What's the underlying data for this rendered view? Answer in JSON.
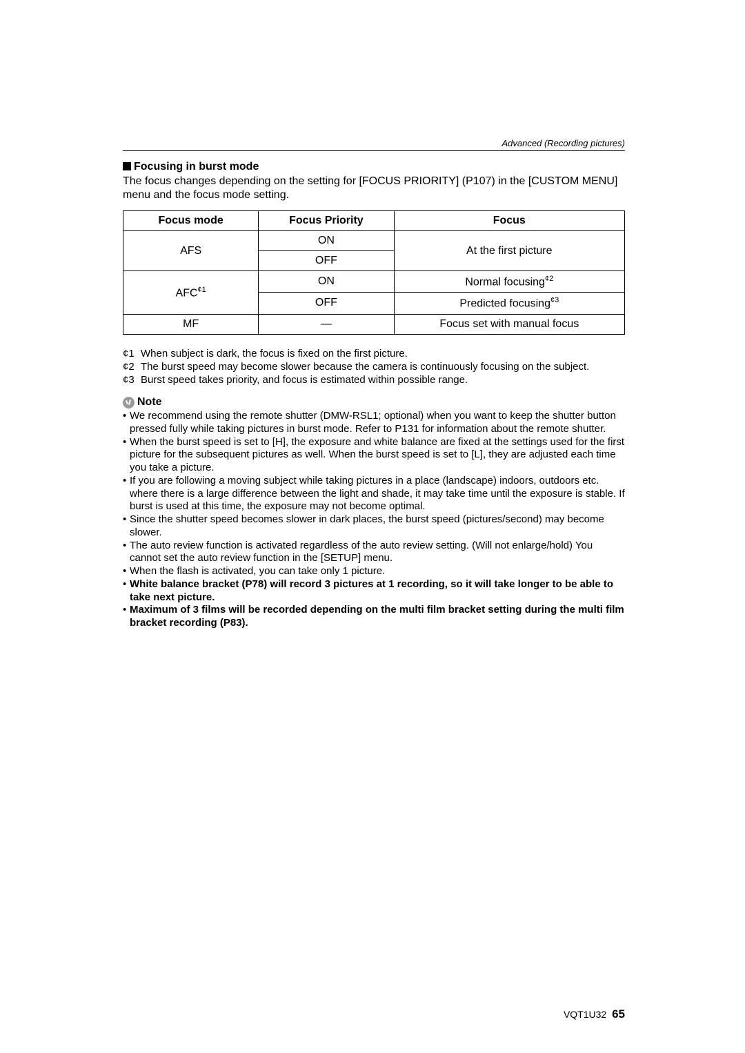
{
  "header": {
    "section": "Advanced (Recording pictures)"
  },
  "title": "Focusing in burst mode",
  "intro": "The focus changes depending on the setting for [FOCUS PRIORITY] (P107) in the [CUSTOM MENU] menu and the focus mode setting.",
  "table": {
    "headers": {
      "c1": "Focus mode",
      "c2": "Focus Priority",
      "c3": "Focus"
    },
    "rows": {
      "afs": {
        "mode": "AFS",
        "p_on": "ON",
        "p_off": "OFF",
        "focus": "At the first picture"
      },
      "afc": {
        "mode_prefix": "AFC",
        "mode_sup": "¢1",
        "p_on": "ON",
        "p_off": "OFF",
        "focus_on_prefix": "Normal focusing",
        "focus_on_sup": "¢2",
        "focus_off_prefix": "Predicted focusing",
        "focus_off_sup": "¢3"
      },
      "mf": {
        "mode": "MF",
        "priority": "—",
        "focus": "Focus set with manual focus"
      }
    },
    "col_widths": [
      "27%",
      "27%",
      "46%"
    ],
    "border_color": "#000000",
    "font_size": 16
  },
  "footnotes": {
    "f1": {
      "mark": "¢1",
      "text": "When subject is dark, the focus is fixed on the first picture."
    },
    "f2": {
      "mark": "¢2",
      "text": "The burst speed may become slower because the camera is continuously focusing on the subject."
    },
    "f3": {
      "mark": "¢3",
      "text": "Burst speed takes priority, and focus is estimated within possible range."
    }
  },
  "note": {
    "label": "Note"
  },
  "bullets": {
    "b1": "We recommend using the remote shutter (DMW-RSL1; optional) when you want to keep the shutter button pressed fully while taking pictures in burst mode. Refer to P131 for information about the remote shutter.",
    "b2": "When the burst speed is set to [H], the exposure and white balance are fixed at the settings used for the first picture for the subsequent pictures as well. When the burst speed is set to [L], they are adjusted each time you take a picture.",
    "b3": "If you are following a moving subject while taking pictures in a place (landscape) indoors, outdoors etc. where there is a large difference between the light and shade, it may take time until the exposure is stable. If burst is used at this time, the exposure may not become optimal.",
    "b4": "Since the shutter speed becomes slower in dark places, the burst speed (pictures/second) may become slower.",
    "b5": "The auto review function is activated regardless of the auto review setting. (Will not enlarge/hold) You cannot set the auto review function in the [SETUP] menu.",
    "b6": "When the flash is activated, you can take only 1 picture.",
    "b7": "White balance bracket (P78) will record 3 pictures at 1 recording, so it will take longer to be able to take next picture.",
    "b8": "Maximum of 3 films will be recorded depending on the multi film bracket setting during the multi film bracket recording (P83)."
  },
  "footer": {
    "code": "VQT1U32",
    "page": "65"
  },
  "colors": {
    "text": "#000000",
    "bg": "#ffffff",
    "icon": "#9a9a9a"
  }
}
